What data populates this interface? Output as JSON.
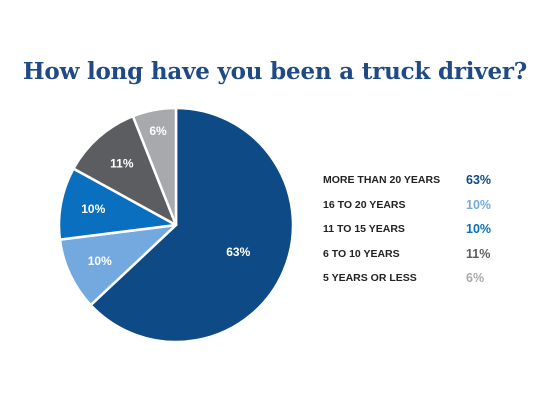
{
  "chart_data": {
    "type": "pie",
    "title": "How long have you been a truck driver?",
    "slices": [
      {
        "label": "MORE THAN 20 YEARS",
        "value": 63,
        "value_label": "63%",
        "color": "#0d4a86",
        "legend_value_color": "#0d4a86"
      },
      {
        "label": "16 TO 20 YEARS",
        "value": 10,
        "value_label": "10%",
        "color": "#74a9e0",
        "legend_value_color": "#74a9e0"
      },
      {
        "label": "11 TO 15 YEARS",
        "value": 10,
        "value_label": "10%",
        "color": "#0a6fbf",
        "legend_value_color": "#0a6fbf"
      },
      {
        "label": "6 TO 10 YEARS",
        "value": 11,
        "value_label": "11%",
        "color": "#5b5d60",
        "legend_value_color": "#5b5d60"
      },
      {
        "label": "5 YEARS OR LESS",
        "value": 6,
        "value_label": "6%",
        "color": "#a7a9ac",
        "legend_value_color": "#a7a9ac"
      }
    ],
    "legend_position": "right"
  }
}
